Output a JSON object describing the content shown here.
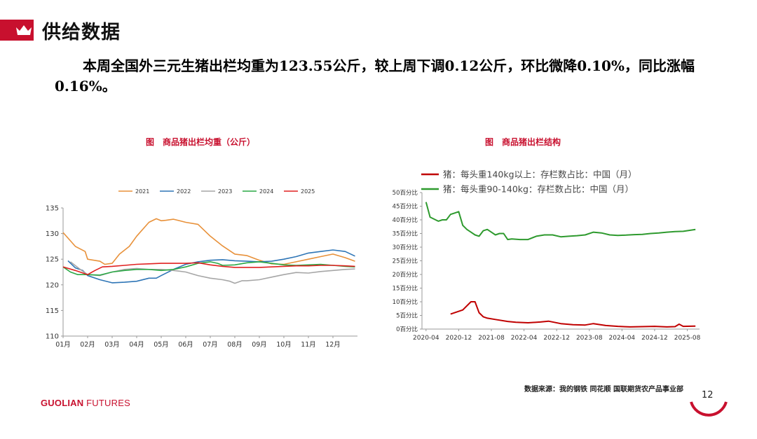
{
  "header": {
    "title": "供给数据",
    "summary": "本周全国外三元生猪出栏均重为123.55公斤，较上周下调0.12公斤，环比微降0.10%，同比涨幅0.16%。"
  },
  "chart_data": [
    {
      "type": "line",
      "title": "图　商品猪出栏均重（公斤）",
      "legend_position": "top",
      "categories": [
        "01月",
        "02月",
        "03月",
        "04月",
        "05月",
        "06月",
        "07月",
        "08月",
        "09月",
        "10月",
        "11月",
        "12月"
      ],
      "ylim": [
        110,
        135
      ],
      "yticks": [
        110,
        115,
        120,
        125,
        130,
        135
      ],
      "grid": false,
      "series": [
        {
          "name": "2021",
          "color": "#e8913a",
          "x": [
            0,
            0.5,
            0.9,
            1.0,
            1.5,
            1.7,
            2.0,
            2.3,
            2.7,
            3.0,
            3.5,
            3.8,
            4.0,
            4.2,
            4.5,
            5.0,
            5.5,
            6.0,
            6.5,
            7.0,
            7.5,
            8.0,
            8.5,
            9.0,
            9.5,
            10.0,
            10.5,
            11.0,
            11.5,
            11.9
          ],
          "y": [
            130.2,
            127.5,
            126.5,
            125.0,
            124.6,
            124.0,
            124.2,
            126.0,
            127.5,
            129.5,
            132.2,
            132.9,
            132.5,
            132.6,
            132.8,
            132.2,
            131.8,
            129.5,
            127.6,
            126.0,
            125.7,
            124.8,
            124.1,
            124.0,
            124.5,
            125.0,
            125.5,
            126.0,
            125.3,
            124.6
          ]
        },
        {
          "name": "2022",
          "color": "#2e75b6",
          "x": [
            0.2,
            0.5,
            0.8,
            1.0,
            1.5,
            2.0,
            2.5,
            3.0,
            3.5,
            3.8,
            4.0,
            4.5,
            5.0,
            5.5,
            6.0,
            6.5,
            7.0,
            7.5,
            8.0,
            8.5,
            9.0,
            9.5,
            10.0,
            10.5,
            11.0,
            11.5,
            11.9
          ],
          "y": [
            124.7,
            123.3,
            122.8,
            121.8,
            121.0,
            120.4,
            120.5,
            120.7,
            121.3,
            121.3,
            121.8,
            123.0,
            124.0,
            124.5,
            124.8,
            124.9,
            124.7,
            124.6,
            124.5,
            124.6,
            125.0,
            125.5,
            126.2,
            126.5,
            126.8,
            126.5,
            125.6
          ]
        },
        {
          "name": "2023",
          "color": "#a6a6a6",
          "x": [
            0.3,
            0.7,
            1.0,
            1.5,
            2.0,
            2.5,
            3.0,
            3.5,
            4.0,
            4.5,
            5.0,
            5.5,
            6.0,
            6.5,
            6.8,
            7.0,
            7.3,
            7.5,
            8.0,
            8.5,
            9.0,
            9.5,
            10.0,
            10.5,
            11.0,
            11.5,
            11.9
          ],
          "y": [
            124.5,
            123.0,
            122.0,
            121.8,
            122.5,
            123.0,
            123.2,
            123.0,
            123.0,
            122.8,
            122.5,
            121.8,
            121.3,
            121.0,
            120.7,
            120.3,
            120.8,
            120.8,
            121.0,
            121.5,
            122.0,
            122.4,
            122.3,
            122.6,
            122.8,
            123.0,
            123.1
          ]
        },
        {
          "name": "2024",
          "color": "#2aa845",
          "x": [
            0,
            0.3,
            0.6,
            1.0,
            1.5,
            2.0,
            2.5,
            3.0,
            3.5,
            4.0,
            4.5,
            5.0,
            5.5,
            6.0,
            6.3,
            6.5,
            7.0,
            7.5,
            8.0,
            8.5,
            9.0,
            9.5,
            10.0,
            10.5,
            11.0,
            11.5,
            11.9
          ],
          "y": [
            123.5,
            122.5,
            122.0,
            122.0,
            121.9,
            122.5,
            122.8,
            123.0,
            123.0,
            122.8,
            123.0,
            123.5,
            124.2,
            124.5,
            124.2,
            123.8,
            123.9,
            124.3,
            124.5,
            124.2,
            123.9,
            123.8,
            123.9,
            124.0,
            123.8,
            123.6,
            123.5
          ]
        },
        {
          "name": "2025",
          "color": "#e02020",
          "x": [
            0,
            0.5,
            1.0,
            1.3,
            1.6,
            2.0,
            2.5,
            3.0,
            3.5,
            4.0,
            4.5,
            5.0,
            5.5,
            6.0,
            6.5,
            7.0,
            7.5,
            8.0,
            8.5,
            9.0,
            9.5,
            10.0,
            10.5,
            11.0,
            11.5,
            11.9
          ],
          "y": [
            123.5,
            122.8,
            122.0,
            122.8,
            123.5,
            123.6,
            123.8,
            124.0,
            124.1,
            124.2,
            124.2,
            124.2,
            124.3,
            123.9,
            123.6,
            123.4,
            123.4,
            123.4,
            123.5,
            123.6,
            123.7,
            123.7,
            123.8,
            123.8,
            123.7,
            123.6
          ]
        }
      ]
    },
    {
      "type": "line",
      "title": "图　商品猪出栏结构",
      "legend_position": "top-left",
      "xticks": [
        "2020-04",
        "2020-12",
        "2021-08",
        "2022-04",
        "2022-12",
        "2023-08",
        "2024-04",
        "2024-12",
        "2025-08"
      ],
      "ylim": [
        0,
        50
      ],
      "yticks": [
        "0百分比",
        "5百分比",
        "10百分比",
        "15百分比",
        "20百分比",
        "25百分比",
        "30百分比",
        "35百分比",
        "40百分比",
        "45百分比",
        "50百分比"
      ],
      "grid": false,
      "series": [
        {
          "name": "猪：每头重140kg以上：存栏数占比：中国（月）",
          "color": "#c00000",
          "x": [
            "2020-10",
            "2021-01",
            "2021-03",
            "2021-04",
            "2021-05",
            "2021-06",
            "2021-07",
            "2021-09",
            "2021-12",
            "2022-02",
            "2022-05",
            "2022-08",
            "2022-10",
            "2023-01",
            "2023-04",
            "2023-07",
            "2023-09",
            "2023-12",
            "2024-03",
            "2024-06",
            "2024-09",
            "2024-12",
            "2025-03",
            "2025-05",
            "2025-06",
            "2025-07",
            "2025-10"
          ],
          "y": [
            5.5,
            7.0,
            10.0,
            10.0,
            6.0,
            4.5,
            4.0,
            3.5,
            2.8,
            2.5,
            2.3,
            2.6,
            2.9,
            2.0,
            1.6,
            1.5,
            2.0,
            1.3,
            1.0,
            0.8,
            0.9,
            1.0,
            0.8,
            0.9,
            1.8,
            1.0,
            1.1
          ]
        },
        {
          "name": "猪：每头重90-140kg：存栏数占比：中国（月）",
          "color": "#2e9a2e",
          "x": [
            "2020-04",
            "2020-05",
            "2020-07",
            "2020-08",
            "2020-09",
            "2020-10",
            "2020-11",
            "2020-12",
            "2021-01",
            "2021-02",
            "2021-03",
            "2021-04",
            "2021-05",
            "2021-06",
            "2021-07",
            "2021-08",
            "2021-09",
            "2021-10",
            "2021-11",
            "2021-12",
            "2022-01",
            "2022-03",
            "2022-05",
            "2022-07",
            "2022-09",
            "2022-11",
            "2023-01",
            "2023-03",
            "2023-05",
            "2023-07",
            "2023-09",
            "2023-11",
            "2024-01",
            "2024-03",
            "2024-05",
            "2024-07",
            "2024-09",
            "2024-11",
            "2025-01",
            "2025-03",
            "2025-05",
            "2025-07",
            "2025-10"
          ],
          "y": [
            46.5,
            41.0,
            39.5,
            40.0,
            40.0,
            42.0,
            42.5,
            43.0,
            38.0,
            36.5,
            35.5,
            34.5,
            34.0,
            36.0,
            36.5,
            35.5,
            34.5,
            35.0,
            35.0,
            32.8,
            33.0,
            32.8,
            32.8,
            34.0,
            34.5,
            34.5,
            33.8,
            34.0,
            34.2,
            34.5,
            35.5,
            35.2,
            34.5,
            34.3,
            34.4,
            34.6,
            34.7,
            35.0,
            35.2,
            35.5,
            35.7,
            35.8,
            36.5
          ]
        }
      ]
    }
  ],
  "footer": {
    "source": "数据来源：我的钢铁  同花顺  国联期货农产品事业部",
    "brand_bold": "GUOLIAN",
    "brand_rest": " FUTURES",
    "page": "12"
  },
  "colors": {
    "brand_red": "#c8102e"
  }
}
